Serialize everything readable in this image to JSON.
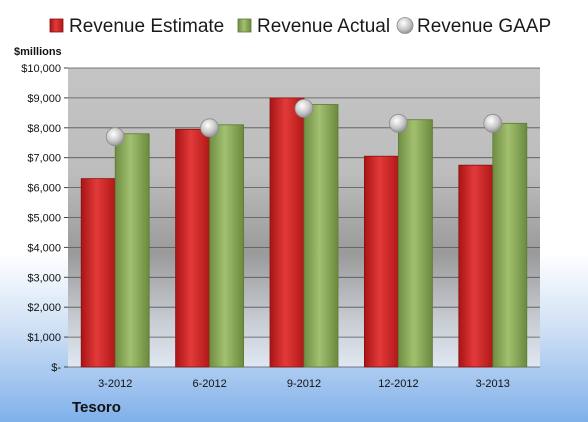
{
  "chart_data": {
    "type": "bar",
    "title": "",
    "ylabel": "$millions",
    "xlabel": "",
    "footer": "Tesoro",
    "categories": [
      "3-2012",
      "6-2012",
      "9-2012",
      "12-2012",
      "3-2013"
    ],
    "series": [
      {
        "name": "Revenue Estimate",
        "kind": "bar",
        "color": "#d42020",
        "values": [
          6300,
          7950,
          9000,
          7050,
          6750
        ]
      },
      {
        "name": "Revenue Actual",
        "kind": "bar",
        "color": "#8fae5a",
        "values": [
          7800,
          8100,
          8780,
          8270,
          8150
        ]
      },
      {
        "name": "Revenue GAAP",
        "kind": "marker",
        "color": "#b8b8b8",
        "values": [
          7700,
          8000,
          8650,
          8150,
          8150
        ]
      }
    ],
    "yticks": [
      "$-",
      "$1,000",
      "$2,000",
      "$3,000",
      "$4,000",
      "$5,000",
      "$6,000",
      "$7,000",
      "$8,000",
      "$9,000",
      "$10,000"
    ],
    "ylim": [
      0,
      10000
    ],
    "grid": true,
    "legend": "top"
  }
}
